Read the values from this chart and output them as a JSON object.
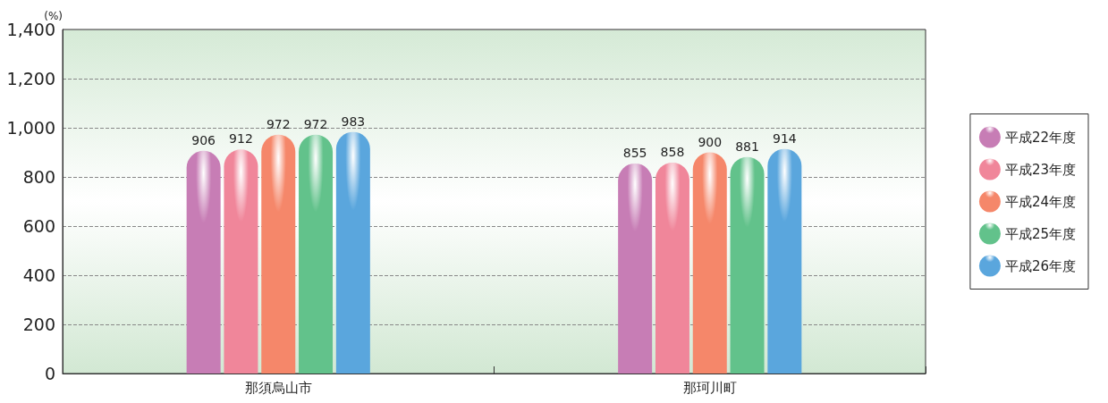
{
  "chart_data": {
    "type": "bar",
    "ylabel": "(%)",
    "categories": [
      "那須烏山市",
      "那珂川町"
    ],
    "series": [
      {
        "name": "平成22年度",
        "color": "#c77db5",
        "values": [
          906,
          855
        ]
      },
      {
        "name": "平成23年度",
        "color": "#f0869a",
        "values": [
          912,
          858
        ]
      },
      {
        "name": "平成24年度",
        "color": "#f5876a",
        "values": [
          972,
          900
        ]
      },
      {
        "name": "平成25年度",
        "color": "#62c28b",
        "values": [
          972,
          881
        ]
      },
      {
        "name": "平成26年度",
        "color": "#5aa6dd",
        "values": [
          983,
          914
        ]
      }
    ],
    "ylim": [
      0,
      1400
    ],
    "yticks": [
      0,
      200,
      400,
      600,
      800,
      {
        "value": 1000,
        "label": "1,000"
      },
      {
        "value": 1200,
        "label": "1,200"
      },
      {
        "value": 1400,
        "label": "1,400"
      }
    ],
    "grid": "y",
    "legend": "right",
    "data_labels": true
  }
}
